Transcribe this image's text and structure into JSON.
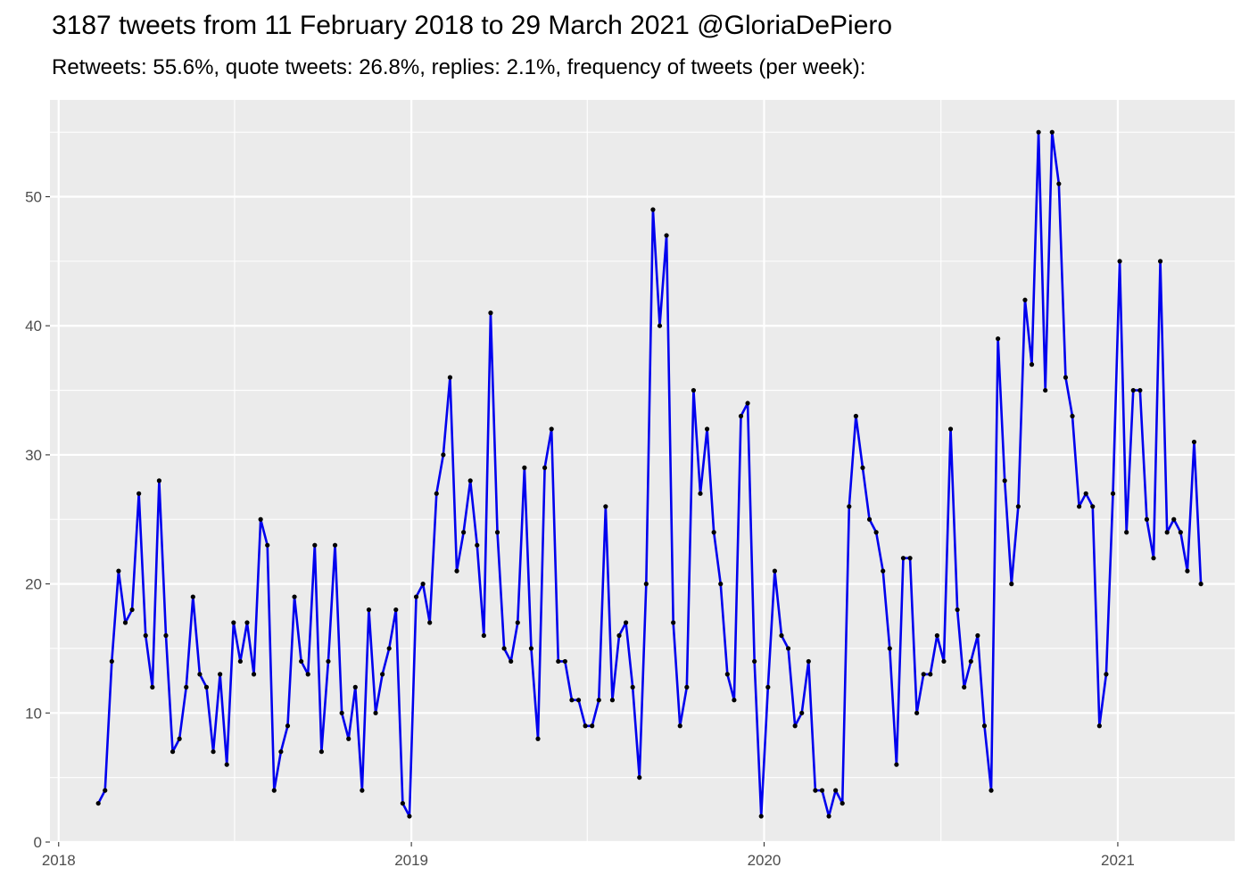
{
  "title": "3187 tweets from 11 February 2018 to 29 March 2021 @GloriaDePiero",
  "subtitle": "Retweets: 55.6%, quote tweets: 26.8%, replies: 2.1%, frequency of tweets (per week):",
  "chart_data": {
    "type": "line",
    "title": "3187 tweets from 11 February 2018 to 29 March 2021 @GloriaDePiero",
    "subtitle": "Retweets: 55.6%, quote tweets: 26.8%, replies: 2.1%, frequency of tweets (per week):",
    "xlabel": "",
    "ylabel": "",
    "x_start": "2018-02-11",
    "x_step_days": 7,
    "xlim": [
      "2017-12-23",
      "2021-05-02"
    ],
    "ylim": [
      0,
      57.5
    ],
    "x_ticks": [
      "2018-01-01",
      "2019-01-01",
      "2020-01-01",
      "2021-01-01"
    ],
    "x_tick_labels": [
      "2018",
      "2019",
      "2020",
      "2021"
    ],
    "y_ticks": [
      0,
      10,
      20,
      30,
      40,
      50
    ],
    "y_tick_labels": [
      "0",
      "10",
      "20",
      "30",
      "40",
      "50"
    ],
    "grid": true,
    "line_color": "#0000ee",
    "point_color": "#000000",
    "background_color": "#ebebeb",
    "grid_color": "#ffffff",
    "values": [
      3,
      4,
      14,
      21,
      17,
      18,
      27,
      16,
      12,
      28,
      16,
      7,
      8,
      12,
      19,
      13,
      12,
      7,
      13,
      6,
      17,
      14,
      17,
      13,
      25,
      23,
      4,
      7,
      9,
      19,
      14,
      13,
      23,
      7,
      14,
      23,
      10,
      8,
      12,
      4,
      18,
      10,
      13,
      15,
      18,
      3,
      2,
      19,
      20,
      17,
      27,
      30,
      36,
      21,
      24,
      28,
      23,
      16,
      41,
      24,
      15,
      14,
      17,
      29,
      15,
      8,
      29,
      32,
      14,
      14,
      11,
      11,
      9,
      9,
      11,
      26,
      11,
      16,
      17,
      12,
      5,
      20,
      49,
      40,
      47,
      17,
      9,
      12,
      35,
      27,
      32,
      24,
      20,
      13,
      11,
      33,
      34,
      14,
      2,
      12,
      21,
      16,
      15,
      9,
      10,
      14,
      4,
      4,
      2,
      4,
      3,
      26,
      33,
      29,
      25,
      24,
      21,
      15,
      6,
      22,
      22,
      10,
      13,
      13,
      16,
      14,
      32,
      18,
      12,
      14,
      16,
      9,
      4,
      39,
      28,
      20,
      26,
      42,
      37,
      55,
      35,
      55,
      51,
      36,
      33,
      26,
      27,
      26,
      9,
      13,
      27,
      45,
      24,
      35,
      35,
      25,
      22,
      45,
      24,
      25,
      24,
      21,
      31,
      20
    ]
  }
}
